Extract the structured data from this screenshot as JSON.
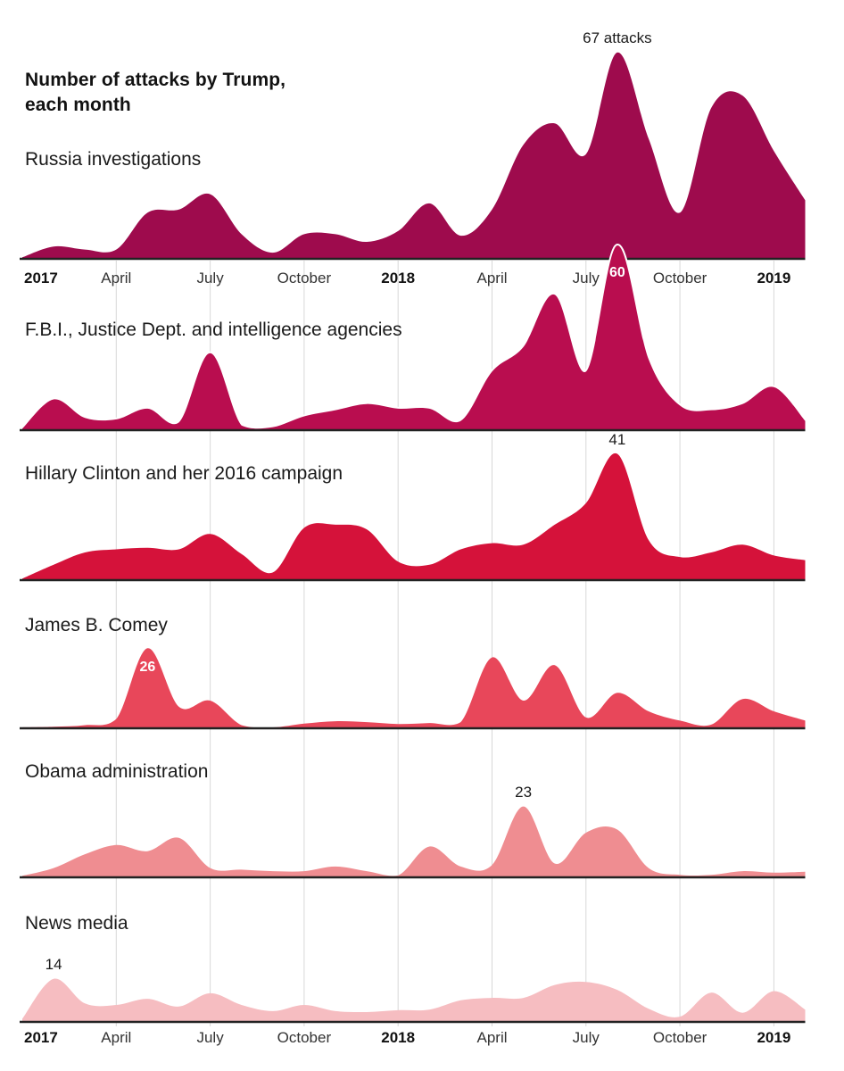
{
  "page": {
    "background": "#ffffff"
  },
  "colors": {
    "gridline": "#d8d8d8",
    "baseline": "#222222",
    "text_dark": "#1a1a1a",
    "text_axis": "#333333",
    "annotation_white": "#ffffff"
  },
  "chart_data": {
    "type": "area",
    "title_lines": [
      "Number of attacks by Trump,",
      "each month"
    ],
    "x_domain": "January 2017 through February 2019, monthly",
    "grid": true,
    "gridline_month_indices": [
      3,
      6,
      9,
      12,
      15,
      18,
      21,
      24
    ],
    "axis_ticks": [
      {
        "label": "2017",
        "month_index": 0,
        "bold": true,
        "align": "left"
      },
      {
        "label": "April",
        "month_index": 3,
        "bold": false
      },
      {
        "label": "July",
        "month_index": 6,
        "bold": false
      },
      {
        "label": "October",
        "month_index": 9,
        "bold": false
      },
      {
        "label": "2018",
        "month_index": 12,
        "bold": true
      },
      {
        "label": "April",
        "month_index": 15,
        "bold": false
      },
      {
        "label": "July",
        "month_index": 18,
        "bold": false
      },
      {
        "label": "October",
        "month_index": 21,
        "bold": false
      },
      {
        "label": "2019",
        "month_index": 24,
        "bold": true
      }
    ],
    "months": [
      "Jan 2017",
      "Feb 2017",
      "Mar 2017",
      "Apr 2017",
      "May 2017",
      "Jun 2017",
      "Jul 2017",
      "Aug 2017",
      "Sep 2017",
      "Oct 2017",
      "Nov 2017",
      "Dec 2017",
      "Jan 2018",
      "Feb 2018",
      "Mar 2018",
      "Apr 2018",
      "May 2018",
      "Jun 2018",
      "Jul 2018",
      "Aug 2018",
      "Sep 2018",
      "Oct 2018",
      "Nov 2018",
      "Dec 2018",
      "Jan 2019",
      "Feb 2019"
    ],
    "series": [
      {
        "id": "russia",
        "label": "Russia investigations",
        "color": "#9e0b4d",
        "halo": false,
        "values": [
          0.5,
          4,
          3,
          3,
          15,
          16,
          21,
          8,
          2,
          8,
          8,
          5.5,
          9,
          18,
          7.5,
          16,
          37,
          44,
          34,
          67,
          39,
          15,
          49,
          53,
          35,
          19
        ],
        "annotation": {
          "text": "67 attacks",
          "value": 67,
          "month_index": 19,
          "placement": "above",
          "style": "dark",
          "dy": 0
        }
      },
      {
        "id": "fbi",
        "label": "F.B.I., Justice Dept. and intelligence agencies",
        "color": "#b90d4f",
        "halo": true,
        "values": [
          0.5,
          10,
          4,
          3.5,
          7,
          2.5,
          25,
          1.5,
          1,
          4.5,
          6.5,
          8.5,
          7,
          7,
          3,
          19,
          27,
          44,
          19,
          60,
          23,
          8,
          6.5,
          8.5,
          14,
          3
        ],
        "annotation": {
          "text": "60",
          "value": 60,
          "month_index": 19,
          "placement": "inside",
          "style": "white",
          "dy": 22
        }
      },
      {
        "id": "hillary",
        "label": "Hillary Clinton and her 2016 campaign",
        "color": "#d5123a",
        "halo": false,
        "values": [
          0.5,
          5,
          9,
          10,
          10.5,
          10,
          15,
          8.5,
          2.5,
          17,
          18,
          16.5,
          6,
          5,
          10,
          12,
          11.5,
          18,
          25,
          41,
          13,
          7.5,
          9,
          11.5,
          8,
          6.5
        ],
        "annotation": {
          "text": "41",
          "value": 41,
          "month_index": 19,
          "placement": "above",
          "style": "dark",
          "dy": 0
        }
      },
      {
        "id": "comey",
        "label": "James B. Comey",
        "color": "#e8475a",
        "halo": false,
        "values": [
          0.3,
          0.5,
          1,
          3,
          26,
          7,
          9,
          1,
          0.3,
          1.5,
          2.3,
          2,
          1.4,
          1.7,
          2,
          23,
          9,
          20.5,
          3.5,
          11.5,
          5.5,
          2.5,
          1.2,
          9.5,
          5.5,
          2.5
        ],
        "annotation": {
          "text": "26",
          "value": 26,
          "month_index": 4,
          "placement": "inside",
          "style": "white",
          "dy": 13
        }
      },
      {
        "id": "obama",
        "label": "Obama administration",
        "color": "#ef8d91",
        "halo": false,
        "values": [
          0.5,
          3,
          7.5,
          10.5,
          8.5,
          12.8,
          3,
          2.5,
          2,
          2,
          3.5,
          2,
          0.6,
          10,
          3.5,
          4,
          23,
          4.5,
          14.5,
          15.5,
          3,
          0.8,
          0.8,
          2,
          1.5,
          1.8
        ],
        "annotation": {
          "text": "23",
          "value": 23,
          "month_index": 16,
          "placement": "above",
          "style": "dark",
          "dy": 0
        }
      },
      {
        "id": "news",
        "label": "News media",
        "color": "#f6bdc1",
        "halo": false,
        "values": [
          1,
          14,
          6,
          5.5,
          7.5,
          5,
          9.3,
          5.5,
          3.5,
          5.5,
          3.5,
          3.2,
          3.8,
          4,
          7,
          7.8,
          7.8,
          12,
          13,
          10.4,
          4.3,
          1.7,
          9.5,
          3,
          10,
          4
        ],
        "annotation": {
          "text": "14",
          "value": 14,
          "month_index": 1,
          "placement": "above",
          "style": "dark",
          "dy": 0
        }
      }
    ]
  }
}
